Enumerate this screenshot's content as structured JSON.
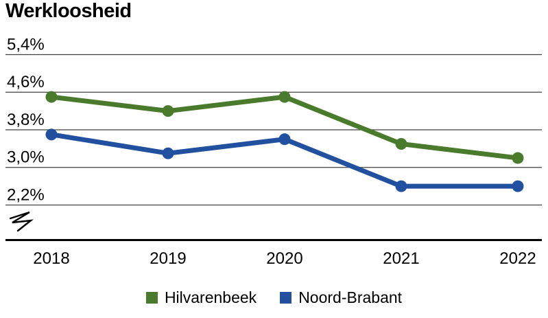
{
  "title": "Werkloosheid",
  "colors": {
    "background": "#ffffff",
    "text": "#000000",
    "grid": "#404040",
    "axis": "#000000",
    "hilvarenbeek_green": "#4a7a2c",
    "noord_brabant_blue": "#2150a0"
  },
  "chart_data": {
    "type": "line",
    "title": "Werkloosheid",
    "categories": [
      "2018",
      "2019",
      "2020",
      "2021",
      "2022"
    ],
    "series": [
      {
        "name": "Hilvarenbeek",
        "color": "#4a7a2c",
        "values": [
          4.5,
          4.2,
          4.5,
          3.5,
          3.2
        ]
      },
      {
        "name": "Noord-Brabant",
        "color": "#2150a0",
        "values": [
          3.7,
          3.3,
          3.6,
          2.6,
          2.6
        ]
      }
    ],
    "y_ticks": [
      {
        "value": 5.4,
        "label": "5,4%"
      },
      {
        "value": 4.6,
        "label": "4,6%"
      },
      {
        "value": 3.8,
        "label": "3,8%"
      },
      {
        "value": 3.0,
        "label": "3,0%"
      },
      {
        "value": 2.2,
        "label": "2,2%"
      }
    ],
    "ylim": [
      2.2,
      5.4
    ],
    "xlabel": "",
    "ylabel": "",
    "value_unit": "%",
    "grid": true,
    "axis_break": true,
    "legend_position": "bottom"
  }
}
